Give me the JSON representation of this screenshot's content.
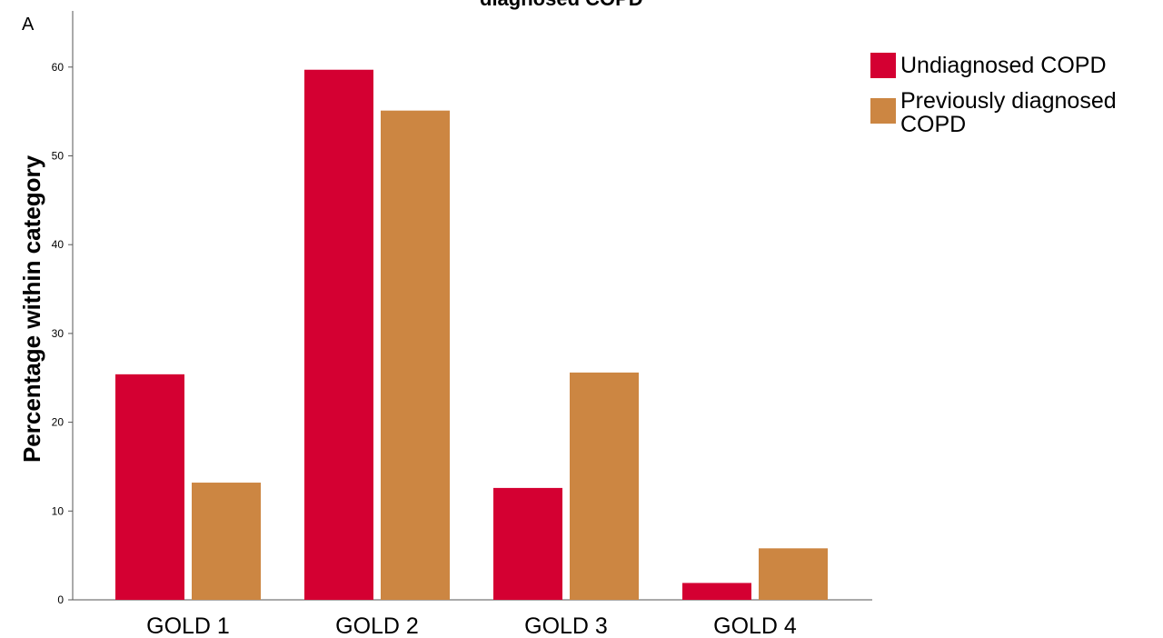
{
  "panel_label": "A",
  "title_fragment": "diagnosed COPD",
  "legend": [
    {
      "label_line1": "Undiagnosed COPD",
      "label_line2": "",
      "color": "#d40032"
    },
    {
      "label_line1": "Previously diagnosed",
      "label_line2": "COPD",
      "color": "#cc8642"
    }
  ],
  "chart_data": {
    "type": "bar",
    "title": "",
    "xlabel": "",
    "ylabel": "Percentage within category",
    "ylim": [
      0,
      66
    ],
    "yticks": [
      0,
      10,
      20,
      30,
      40,
      50,
      60
    ],
    "categories": [
      "GOLD 1",
      "GOLD 2",
      "GOLD 3",
      "GOLD 4"
    ],
    "series": [
      {
        "name": "Undiagnosed COPD",
        "color": "#d40032",
        "values": [
          25.4,
          59.7,
          12.6,
          1.9
        ]
      },
      {
        "name": "Previously diagnosed COPD",
        "color": "#cc8642",
        "values": [
          13.2,
          55.1,
          25.6,
          5.8
        ]
      }
    ],
    "grid": false,
    "legend_position": "top-right"
  }
}
